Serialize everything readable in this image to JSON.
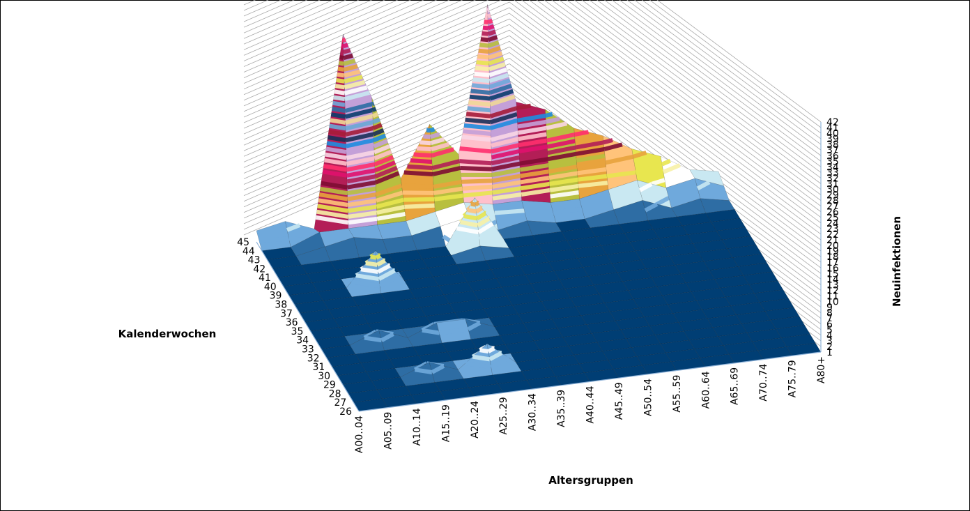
{
  "chart_data": {
    "type": "surface",
    "title": "",
    "xlabel": "Altersgruppen",
    "ylabel": "Kalenderwochen",
    "zlabel": "Neuinfektionen",
    "x_categories": [
      "A00..04",
      "A05..09",
      "A10..14",
      "A15..19",
      "A20..24",
      "A25..29",
      "A30..34",
      "A35..39",
      "A40..44",
      "A45..49",
      "A50..54",
      "A55..59",
      "A60..64",
      "A65..69",
      "A70..74",
      "A75..79",
      "A80+"
    ],
    "y_categories": [
      "26",
      "27",
      "28",
      "29",
      "30",
      "31",
      "32",
      "33",
      "34",
      "35",
      "36",
      "37",
      "38",
      "39",
      "40",
      "41",
      "42",
      "43",
      "44",
      "45"
    ],
    "z_ticks": [
      "1",
      "2",
      "3",
      "4",
      "5",
      "6",
      "7",
      "8",
      "9",
      "10",
      "11",
      "12",
      "13",
      "14",
      "15",
      "16",
      "17",
      "18",
      "19",
      "20",
      "21",
      "22",
      "23",
      "24",
      "25",
      "26",
      "27",
      "28",
      "29",
      "30",
      "31",
      "32",
      "33",
      "34",
      "35",
      "36",
      "37",
      "38",
      "39",
      "40",
      "41",
      "42"
    ],
    "zlim": [
      1,
      42
    ],
    "values": [
      [
        1,
        1,
        1,
        1,
        1,
        1,
        1,
        1,
        1,
        1,
        1,
        1,
        1,
        1,
        1,
        1,
        1
      ],
      [
        1,
        1,
        1,
        1,
        1,
        1,
        1,
        1,
        1,
        1,
        1,
        1,
        1,
        1,
        1,
        1,
        1
      ],
      [
        1,
        1,
        1,
        1,
        1,
        1,
        1,
        1,
        1,
        1,
        1,
        1,
        1,
        1,
        1,
        1,
        1
      ],
      [
        1,
        1,
        1,
        3,
        1,
        5,
        1,
        1,
        1,
        1,
        1,
        1,
        1,
        1,
        1,
        1,
        1
      ],
      [
        1,
        1,
        1,
        1,
        1,
        1,
        1,
        1,
        1,
        1,
        1,
        1,
        1,
        1,
        1,
        1,
        1
      ],
      [
        1,
        1,
        1,
        1,
        1,
        1,
        1,
        1,
        1,
        1,
        1,
        1,
        1,
        1,
        1,
        1,
        1
      ],
      [
        1,
        1,
        1,
        1,
        1,
        1,
        1,
        1,
        1,
        1,
        1,
        1,
        1,
        1,
        1,
        1,
        1
      ],
      [
        1,
        1,
        3,
        1,
        3,
        3,
        1,
        1,
        1,
        1,
        1,
        1,
        1,
        1,
        1,
        1,
        1
      ],
      [
        1,
        1,
        1,
        1,
        1,
        1,
        1,
        1,
        1,
        1,
        1,
        1,
        1,
        1,
        1,
        1,
        1
      ],
      [
        1,
        1,
        1,
        1,
        1,
        1,
        1,
        1,
        1,
        1,
        1,
        1,
        1,
        1,
        1,
        1,
        1
      ],
      [
        1,
        1,
        1,
        1,
        1,
        1,
        1,
        1,
        1,
        1,
        1,
        1,
        1,
        1,
        1,
        1,
        1
      ],
      [
        1,
        1,
        1,
        1,
        1,
        1,
        1,
        1,
        1,
        1,
        1,
        1,
        1,
        1,
        1,
        1,
        1
      ],
      [
        1,
        1,
        1,
        1,
        1,
        1,
        1,
        1,
        1,
        1,
        1,
        1,
        1,
        1,
        1,
        1,
        1
      ],
      [
        1,
        1,
        1,
        7,
        1,
        1,
        1,
        1,
        1,
        1,
        1,
        1,
        1,
        1,
        1,
        1,
        1
      ],
      [
        1,
        1,
        1,
        1,
        1,
        1,
        1,
        1,
        1,
        1,
        1,
        1,
        1,
        1,
        1,
        1,
        1
      ],
      [
        1,
        1,
        1,
        1,
        1,
        1,
        1,
        2,
        1,
        1,
        1,
        1,
        1,
        1,
        1,
        1,
        1
      ],
      [
        1,
        1,
        1,
        1,
        1,
        1,
        1,
        9,
        1,
        1,
        1,
        1,
        1,
        1,
        1,
        1,
        1
      ],
      [
        1,
        1,
        2,
        3,
        2,
        2,
        3,
        4,
        1,
        2,
        1,
        1,
        2,
        3,
        1,
        2,
        1
      ],
      [
        1,
        1,
        3,
        3,
        3,
        3,
        4,
        5,
        4,
        4,
        3,
        3,
        4,
        5,
        3,
        4,
        2
      ],
      [
        3,
        4,
        2,
        36,
        24,
        9,
        18,
        12,
        38,
        20,
        18,
        14,
        12,
        9,
        7,
        4,
        3
      ]
    ],
    "bands": [
      "#0b3d6e",
      "#2e6da4",
      "#6fa9dc",
      "#c9e8f2",
      "#ffffff",
      "#f7f1a6",
      "#e8e64f",
      "#ffc37a",
      "#e8a33d",
      "#b8bf3f",
      "#7e0c33",
      "#b31e57",
      "#e0116e",
      "#ff2f6e",
      "#ffc0cb",
      "#f9d6e5",
      "#c4a0d8",
      "#1e8ce0",
      "#1a2f5a",
      "#a51c3a",
      "#6aa7d6",
      "#f0d898"
    ],
    "base_color": "#003e74"
  }
}
